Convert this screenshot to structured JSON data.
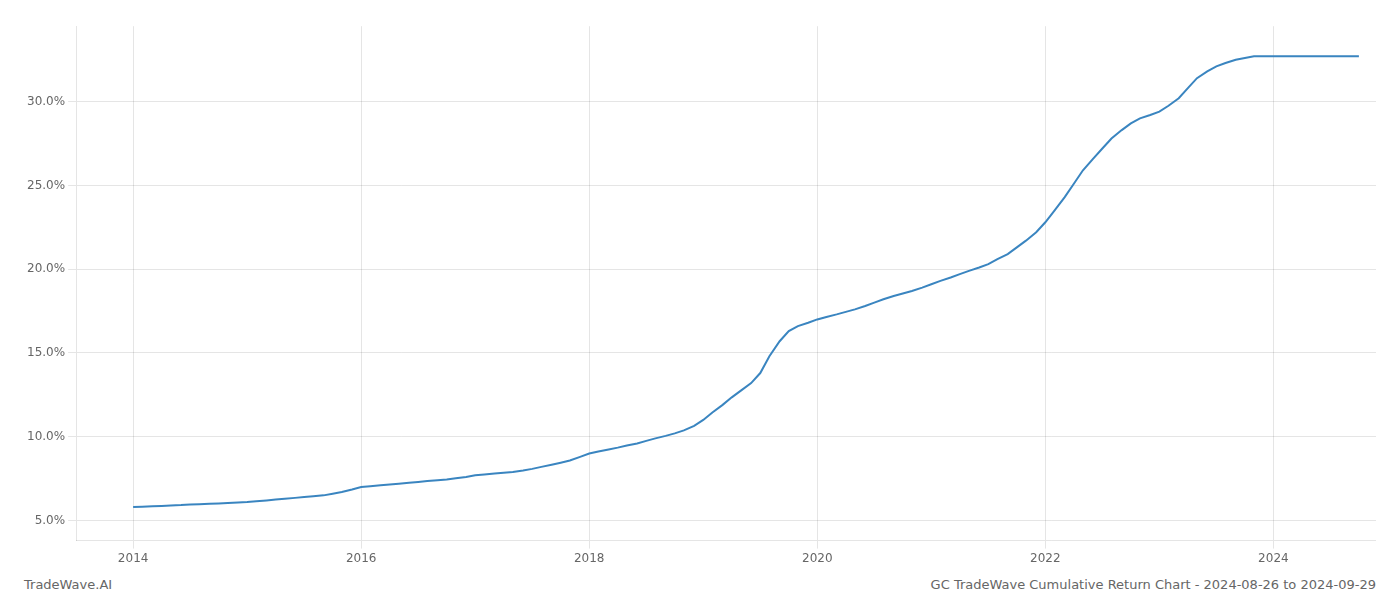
{
  "chart_data": {
    "type": "line",
    "annotations": [
      "TradeWave.AI",
      "GC TradeWave Cumulative Return Chart - 2024-08-26 to 2024-09-29"
    ],
    "color": "#3a85c0",
    "grid": true,
    "xlim": [
      2013.5,
      2024.9
    ],
    "xticks": [
      2014,
      2016,
      2018,
      2020,
      2022,
      2024
    ],
    "ylim": [
      0.038,
      0.345
    ],
    "yticks": [
      {
        "value": 0.05,
        "label": "5.0%"
      },
      {
        "value": 0.1,
        "label": "10.0%"
      },
      {
        "value": 0.15,
        "label": "15.0%"
      },
      {
        "value": 0.2,
        "label": "20.0%"
      },
      {
        "value": 0.25,
        "label": "25.0%"
      },
      {
        "value": 0.3,
        "label": "30.0%"
      }
    ],
    "x": [
      2014.0,
      2014.08,
      2014.17,
      2014.25,
      2014.33,
      2014.42,
      2014.5,
      2014.58,
      2014.67,
      2014.75,
      2014.83,
      2014.92,
      2015.0,
      2015.08,
      2015.17,
      2015.25,
      2015.33,
      2015.42,
      2015.5,
      2015.58,
      2015.67,
      2015.75,
      2015.83,
      2015.92,
      2016.0,
      2016.08,
      2016.17,
      2016.25,
      2016.33,
      2016.42,
      2016.5,
      2016.58,
      2016.67,
      2016.75,
      2016.83,
      2016.92,
      2017.0,
      2017.08,
      2017.17,
      2017.25,
      2017.33,
      2017.42,
      2017.5,
      2017.58,
      2017.67,
      2017.75,
      2017.83,
      2017.92,
      2018.0,
      2018.08,
      2018.17,
      2018.25,
      2018.33,
      2018.42,
      2018.5,
      2018.58,
      2018.67,
      2018.75,
      2018.83,
      2018.92,
      2019.0,
      2019.08,
      2019.17,
      2019.25,
      2019.33,
      2019.42,
      2019.5,
      2019.58,
      2019.67,
      2019.75,
      2019.83,
      2019.92,
      2020.0,
      2020.08,
      2020.17,
      2020.25,
      2020.33,
      2020.42,
      2020.5,
      2020.58,
      2020.67,
      2020.75,
      2020.83,
      2020.92,
      2021.0,
      2021.08,
      2021.17,
      2021.25,
      2021.33,
      2021.42,
      2021.5,
      2021.58,
      2021.67,
      2021.75,
      2021.83,
      2021.92,
      2022.0,
      2022.08,
      2022.17,
      2022.25,
      2022.33,
      2022.42,
      2022.5,
      2022.58,
      2022.67,
      2022.75,
      2022.83,
      2022.92,
      2023.0,
      2023.08,
      2023.17,
      2023.25,
      2023.33,
      2023.42,
      2023.5,
      2023.58,
      2023.67,
      2023.75,
      2023.83,
      2023.92,
      2024.0,
      2024.08,
      2024.17,
      2024.25,
      2024.33,
      2024.42,
      2024.5,
      2024.58,
      2024.67,
      2024.75
    ],
    "values": [
      0.058,
      0.0582,
      0.0585,
      0.0587,
      0.059,
      0.0592,
      0.0595,
      0.0597,
      0.06,
      0.0602,
      0.0605,
      0.0608,
      0.061,
      0.0615,
      0.062,
      0.0625,
      0.063,
      0.0635,
      0.064,
      0.0645,
      0.065,
      0.066,
      0.067,
      0.0685,
      0.07,
      0.0705,
      0.071,
      0.0715,
      0.072,
      0.0725,
      0.073,
      0.0735,
      0.074,
      0.0745,
      0.0752,
      0.076,
      0.077,
      0.0775,
      0.078,
      0.0785,
      0.079,
      0.0798,
      0.0808,
      0.082,
      0.0833,
      0.0845,
      0.0858,
      0.088,
      0.09,
      0.0912,
      0.0924,
      0.0935,
      0.0948,
      0.096,
      0.0975,
      0.099,
      0.1005,
      0.102,
      0.1038,
      0.1065,
      0.11,
      0.1145,
      0.119,
      0.1235,
      0.1275,
      0.132,
      0.138,
      0.148,
      0.157,
      0.163,
      0.166,
      0.168,
      0.17,
      0.1715,
      0.173,
      0.1745,
      0.176,
      0.178,
      0.18,
      0.182,
      0.184,
      0.1855,
      0.187,
      0.189,
      0.191,
      0.193,
      0.195,
      0.197,
      0.199,
      0.201,
      0.203,
      0.206,
      0.209,
      0.213,
      0.217,
      0.222,
      0.228,
      0.235,
      0.243,
      0.251,
      0.259,
      0.266,
      0.272,
      0.278,
      0.283,
      0.287,
      0.29,
      0.292,
      0.294,
      0.2975,
      0.302,
      0.308,
      0.314,
      0.318,
      0.321,
      0.323,
      0.325,
      0.326,
      0.327,
      0.327,
      0.327,
      0.327,
      0.327,
      0.327,
      0.327,
      0.327,
      0.327,
      0.327,
      0.327,
      0.327
    ]
  }
}
